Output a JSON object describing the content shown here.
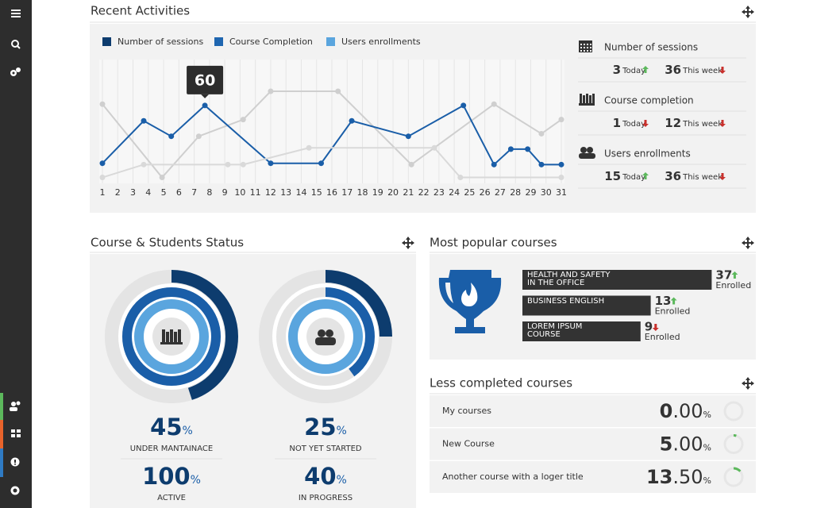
{
  "recent_activities": {
    "title": "Recent Activities",
    "chart_data": {
      "type": "line",
      "xlim": [
        1,
        31
      ],
      "xticks": [
        1,
        2,
        3,
        4,
        5,
        6,
        7,
        8,
        9,
        10,
        11,
        12,
        13,
        14,
        15,
        16,
        17,
        18,
        19,
        20,
        21,
        22,
        23,
        24,
        25,
        26,
        27,
        28,
        29,
        30,
        31
      ],
      "ylim": [
        0,
        92
      ],
      "grid": true,
      "series": [
        {
          "name": "Number of sessions",
          "color": "#0d3c6e",
          "line_color": "#cfcfcf",
          "x": [
            1,
            4.9,
            7.3,
            10.2,
            12,
            16.4,
            21.2,
            26.6,
            29.7,
            31
          ],
          "values": [
            61,
            4,
            36,
            49,
            71,
            71,
            14,
            61,
            38,
            49
          ]
        },
        {
          "name": "Course Completion",
          "color": "#1f66b0",
          "line_color": "#1a5ea8",
          "x": [
            1,
            3.7,
            5.5,
            7.7,
            12,
            15.3,
            17.3,
            21,
            24.6,
            26.6,
            27.7,
            28.8,
            29.7,
            31
          ],
          "values": [
            15,
            48,
            36,
            60,
            15,
            15,
            48,
            36,
            60,
            14,
            26,
            26,
            14,
            14
          ]
        },
        {
          "name": "Users enrollments",
          "color": "#5aa5de",
          "line_color": "#d9d9d9",
          "x": [
            1,
            3.7,
            9.2,
            10.2,
            14.5,
            22.7,
            24.4,
            31
          ],
          "values": [
            4,
            14,
            14,
            14,
            27,
            27,
            4,
            4
          ]
        }
      ]
    },
    "stats": [
      {
        "label": "Number of sessions",
        "today": 3,
        "today_label": "Today",
        "today_trend": "up",
        "week": 36,
        "week_label": "This week",
        "week_trend": "down"
      },
      {
        "label": "Course completion",
        "today": 1,
        "today_label": "Today",
        "today_trend": "down",
        "week": 12,
        "week_label": "This week",
        "week_trend": "down"
      },
      {
        "label": "Users enrollments",
        "today": 15,
        "today_label": "Today",
        "today_trend": "up",
        "week": 36,
        "week_label": "This week",
        "week_trend": "down"
      }
    ]
  },
  "course_status": {
    "title": "Course & Students Status",
    "unit": "%",
    "stats": [
      {
        "value": 45,
        "label": "UNDER MANTAINACE"
      },
      {
        "value": 100,
        "label": "ACTIVE"
      },
      {
        "value": 25,
        "label": "NOT YET STARTED"
      },
      {
        "value": 40,
        "label": "IN PROGRESS"
      }
    ]
  },
  "popular_courses": {
    "title": "Most popular courses",
    "courses": [
      {
        "name": "HEALTH AND SAFETY IN THE OFFICE",
        "value": 37,
        "trend": "up",
        "label": "Enrolled"
      },
      {
        "name": "BUSINESS ENGLISH",
        "value": 13,
        "trend": "up",
        "label": "Enrolled"
      },
      {
        "name": "LOREM IPSUM COURSE",
        "value": 9,
        "trend": "down",
        "label": "Enrolled"
      }
    ]
  },
  "less_completed": {
    "title": "Less completed courses",
    "unit": "%",
    "courses": [
      {
        "name": "My courses",
        "value": 0,
        "value_label": "0.00"
      },
      {
        "name": "New Course",
        "value": 5,
        "value_label": "5.00"
      },
      {
        "name": "Another course with a loger title",
        "value": 13.5,
        "value_label": "13.50"
      }
    ]
  }
}
